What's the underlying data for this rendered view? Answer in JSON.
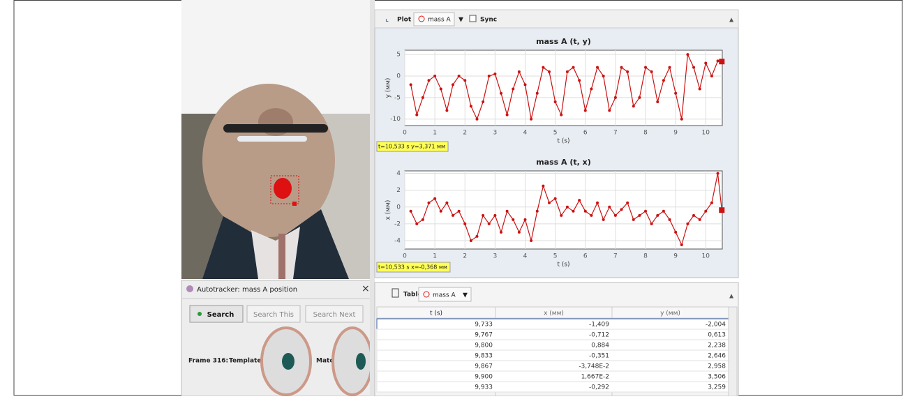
{
  "plot_toolbar": {
    "plot": "Plot",
    "track": "mass A",
    "sync": "Sync"
  },
  "chart_data": [
    {
      "type": "line",
      "title": "mass A (t, y)",
      "x_label": "t (s)",
      "y_label": "y (мм)",
      "color": "#cc1111",
      "grid": true,
      "readout": "t=10,533 s  y=3,371 мм",
      "xlim": [
        0,
        10.55
      ],
      "xticks": [
        0,
        1,
        2,
        3,
        4,
        5,
        6,
        7,
        8,
        9,
        10
      ],
      "ylim": [
        -11.5,
        6
      ],
      "yticks": [
        -10,
        -5,
        0,
        5
      ],
      "x": [
        0.2,
        0.4,
        0.6,
        0.8,
        1.0,
        1.2,
        1.4,
        1.6,
        1.8,
        2.0,
        2.2,
        2.4,
        2.6,
        2.8,
        3.0,
        3.2,
        3.4,
        3.6,
        3.8,
        4.0,
        4.2,
        4.4,
        4.6,
        4.8,
        5.0,
        5.2,
        5.4,
        5.6,
        5.8,
        6.0,
        6.2,
        6.4,
        6.6,
        6.8,
        7.0,
        7.2,
        7.4,
        7.6,
        7.8,
        8.0,
        8.2,
        8.4,
        8.6,
        8.8,
        9.0,
        9.2,
        9.4,
        9.6,
        9.8,
        10.0,
        10.2,
        10.4,
        10.533
      ],
      "values": [
        -2,
        -9,
        -5,
        -1,
        0,
        -3,
        -8,
        -2,
        0,
        -1,
        -7,
        -10,
        -6,
        0,
        0.5,
        -4,
        -9,
        -3,
        1,
        -2,
        -10,
        -4,
        2,
        1,
        -6,
        -9,
        1,
        2,
        -1,
        -8,
        -3,
        2,
        0,
        -8,
        -5,
        2,
        1,
        -7,
        -5,
        2,
        1,
        -6,
        -1,
        2,
        -4,
        -10,
        5,
        2,
        -3,
        3,
        0,
        3.5,
        3.371
      ]
    },
    {
      "type": "line",
      "title": "mass A (t, x)",
      "x_label": "t (s)",
      "y_label": "x (мм)",
      "color": "#cc1111",
      "grid": true,
      "readout": "t=10,533 s  x=-0,368 мм",
      "xlim": [
        0,
        10.55
      ],
      "xticks": [
        0,
        1,
        2,
        3,
        4,
        5,
        6,
        7,
        8,
        9,
        10
      ],
      "ylim": [
        -5,
        4.3
      ],
      "yticks": [
        -4,
        -2,
        0,
        2,
        4
      ],
      "x": [
        0.2,
        0.4,
        0.6,
        0.8,
        1.0,
        1.2,
        1.4,
        1.6,
        1.8,
        2.0,
        2.2,
        2.4,
        2.6,
        2.8,
        3.0,
        3.2,
        3.4,
        3.6,
        3.8,
        4.0,
        4.2,
        4.4,
        4.6,
        4.8,
        5.0,
        5.2,
        5.4,
        5.6,
        5.8,
        6.0,
        6.2,
        6.4,
        6.6,
        6.8,
        7.0,
        7.2,
        7.4,
        7.6,
        7.8,
        8.0,
        8.2,
        8.4,
        8.6,
        8.8,
        9.0,
        9.2,
        9.4,
        9.6,
        9.8,
        10.0,
        10.2,
        10.4,
        10.533
      ],
      "values": [
        -0.5,
        -2,
        -1.5,
        0.5,
        1,
        -0.5,
        0.5,
        -1,
        -0.5,
        -2,
        -4,
        -3.5,
        -1,
        -2,
        -1,
        -3,
        -0.5,
        -1.5,
        -3,
        -1.5,
        -4,
        -0.5,
        2.5,
        0.5,
        1,
        -1,
        0,
        -0.5,
        0.8,
        -0.5,
        -1,
        0.5,
        -1.5,
        0,
        -1,
        -0.3,
        0.5,
        -1.5,
        -1,
        -0.5,
        -2,
        -1,
        -0.5,
        -1.5,
        -3,
        -4.5,
        -2,
        -1,
        -1.5,
        -0.5,
        0.5,
        4,
        -0.368
      ]
    }
  ],
  "table_toolbar": {
    "table": "Table",
    "track": "mass A"
  },
  "table": {
    "columns": [
      "t (s)",
      "x (мм)",
      "y (мм)"
    ],
    "rows": [
      [
        "9,733",
        "-1,409",
        "-2,004"
      ],
      [
        "9,767",
        "-0,712",
        "0,613"
      ],
      [
        "9,800",
        "0,884",
        "2,238"
      ],
      [
        "9,833",
        "-0,351",
        "2,646"
      ],
      [
        "9,867",
        "-3,748E-2",
        "2,958"
      ],
      [
        "9,900",
        "1,667E-2",
        "3,506"
      ],
      [
        "9,933",
        "-0,292",
        "3,259"
      ]
    ]
  },
  "autotracker": {
    "title": "Autotracker: mass A position",
    "close": "×",
    "search": "Search",
    "search_this": "Search This",
    "search_next": "Search Next",
    "frame": "Frame 316:",
    "template": "Template",
    "match": "Match"
  }
}
